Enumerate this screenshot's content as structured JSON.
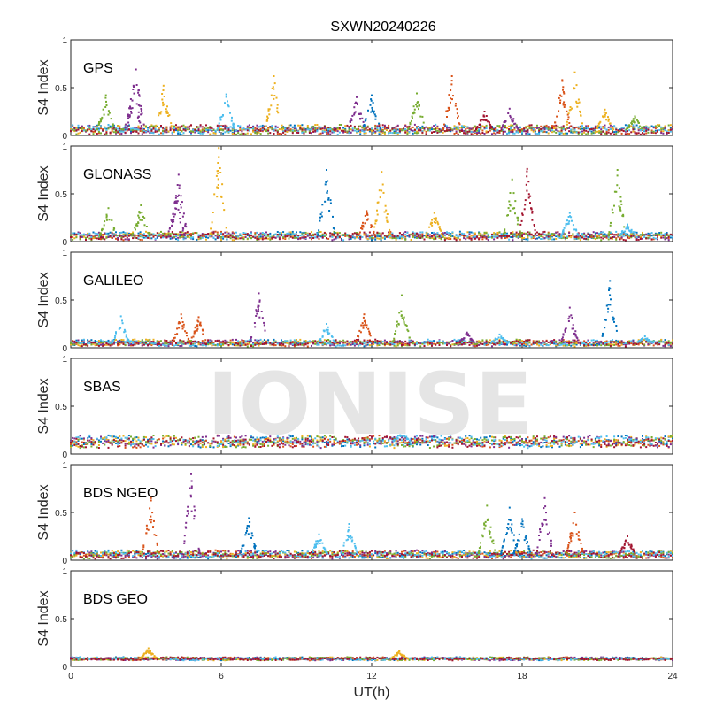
{
  "chart_data": {
    "type": "scatter",
    "title": "SXWN20240226",
    "xlabel": "UT(h)",
    "ylabel": "S4 Index",
    "watermark": "IONISE",
    "xlim": [
      0,
      24
    ],
    "xticks": [
      0,
      6,
      12,
      18,
      24
    ],
    "ylim": [
      0,
      1
    ],
    "yticks": [
      0,
      0.5,
      1
    ],
    "ytick_labels": [
      "0",
      "0.5",
      "1"
    ],
    "grid": false,
    "colors": [
      "#0072BD",
      "#D95319",
      "#EDB120",
      "#7E2F8E",
      "#77AC30",
      "#4DBEEE",
      "#A2142F"
    ],
    "panels": [
      {
        "name": "GPS",
        "baseline": 0.06,
        "noise": 0.035,
        "spikes": [
          [
            1.4,
            0.42,
            4
          ],
          [
            2.5,
            0.52,
            3
          ],
          [
            2.6,
            0.69,
            3
          ],
          [
            3.7,
            0.52,
            2
          ],
          [
            6.2,
            0.43,
            5
          ],
          [
            8.1,
            0.62,
            2
          ],
          [
            11.4,
            0.4,
            3
          ],
          [
            12,
            0.42,
            0
          ],
          [
            13.8,
            0.44,
            4
          ],
          [
            15.2,
            0.62,
            1
          ],
          [
            16.5,
            0.25,
            6
          ],
          [
            17.5,
            0.28,
            3
          ],
          [
            19.6,
            0.58,
            1
          ],
          [
            20.1,
            0.66,
            2
          ],
          [
            21.3,
            0.27,
            2
          ],
          [
            22.5,
            0.2,
            4
          ]
        ]
      },
      {
        "name": "GLONASS",
        "baseline": 0.06,
        "noise": 0.03,
        "spikes": [
          [
            1.5,
            0.35,
            4
          ],
          [
            2.8,
            0.38,
            4
          ],
          [
            4.2,
            0.48,
            3
          ],
          [
            4.3,
            0.7,
            3
          ],
          [
            5.9,
            0.98,
            2
          ],
          [
            10.2,
            0.75,
            0
          ],
          [
            11.8,
            0.32,
            1
          ],
          [
            12.4,
            0.73,
            2
          ],
          [
            14.5,
            0.3,
            2
          ],
          [
            17.6,
            0.65,
            4
          ],
          [
            18.2,
            0.76,
            6
          ],
          [
            19.9,
            0.3,
            5
          ],
          [
            21.8,
            0.75,
            4
          ],
          [
            22.2,
            0.18,
            5
          ]
        ]
      },
      {
        "name": "GALILEO",
        "baseline": 0.05,
        "noise": 0.025,
        "spikes": [
          [
            2,
            0.33,
            5
          ],
          [
            4.4,
            0.35,
            1
          ],
          [
            5.1,
            0.32,
            1
          ],
          [
            7.5,
            0.57,
            3
          ],
          [
            10.2,
            0.25,
            5
          ],
          [
            11.7,
            0.35,
            1
          ],
          [
            13.2,
            0.55,
            4
          ],
          [
            15.8,
            0.16,
            3
          ],
          [
            17.1,
            0.14,
            5
          ],
          [
            19.9,
            0.42,
            3
          ],
          [
            21.5,
            0.7,
            0
          ],
          [
            22.9,
            0.12,
            5
          ]
        ]
      },
      {
        "name": "SBAS",
        "baseline": 0.13,
        "noise": 0.045,
        "spikes": [
          [
            13.2,
            0.24,
            5
          ]
        ]
      },
      {
        "name": "BDS NGEO",
        "baseline": 0.06,
        "noise": 0.03,
        "spikes": [
          [
            3.2,
            0.65,
            1
          ],
          [
            4.8,
            0.9,
            3
          ],
          [
            7.1,
            0.44,
            0
          ],
          [
            9.9,
            0.27,
            5
          ],
          [
            11.1,
            0.38,
            5
          ],
          [
            16.6,
            0.57,
            4
          ],
          [
            17.5,
            0.55,
            0
          ],
          [
            18,
            0.43,
            0
          ],
          [
            18.9,
            0.65,
            3
          ],
          [
            20.1,
            0.5,
            1
          ],
          [
            22.2,
            0.25,
            6
          ]
        ]
      },
      {
        "name": "BDS GEO",
        "baseline": 0.08,
        "noise": 0.012,
        "spikes": [
          [
            3.1,
            0.19,
            2
          ],
          [
            13.1,
            0.16,
            2
          ]
        ]
      }
    ]
  }
}
